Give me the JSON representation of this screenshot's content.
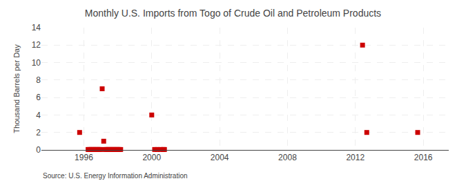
{
  "chart_data": {
    "type": "scatter",
    "title": "Monthly U.S. Imports from Togo of Crude Oil and Petroleum Products",
    "ylabel": "Thousand Barrels per Day",
    "annotations": [
      "Source: U.S. Energy Information Administration"
    ],
    "x": [
      1995.75,
      1996.25,
      1996.33,
      1996.42,
      1996.5,
      1996.58,
      1996.67,
      1996.75,
      1996.83,
      1996.92,
      1997.0,
      1997.08,
      1997.17,
      1997.25,
      1997.33,
      1997.42,
      1997.5,
      1997.58,
      1997.67,
      1997.75,
      1997.83,
      1997.92,
      1998.0,
      1998.08,
      1998.17,
      2000.0,
      2000.17,
      2000.33,
      2000.5,
      2000.67,
      2000.75,
      2012.42,
      2012.67,
      2015.67
    ],
    "values": [
      2.0,
      0.05,
      0.05,
      0.05,
      0.05,
      0.05,
      0.05,
      0.05,
      0.05,
      0.05,
      0.05,
      7.0,
      1.0,
      0.05,
      0.05,
      0.05,
      0.05,
      0.05,
      0.05,
      0.05,
      0.05,
      0.05,
      0.05,
      0.05,
      0.05,
      4.0,
      0.05,
      0.05,
      0.05,
      0.05,
      0.05,
      12.0,
      2.0,
      2.0
    ],
    "color": "#cc0000",
    "marker": "square",
    "xlim": [
      1993.5,
      2017.5
    ],
    "ylim": [
      0,
      14
    ],
    "xticks": [
      1996,
      2000,
      2004,
      2008,
      2012,
      2016
    ],
    "yticks": [
      0,
      2,
      4,
      6,
      8,
      10,
      12,
      14
    ],
    "grid": true
  }
}
